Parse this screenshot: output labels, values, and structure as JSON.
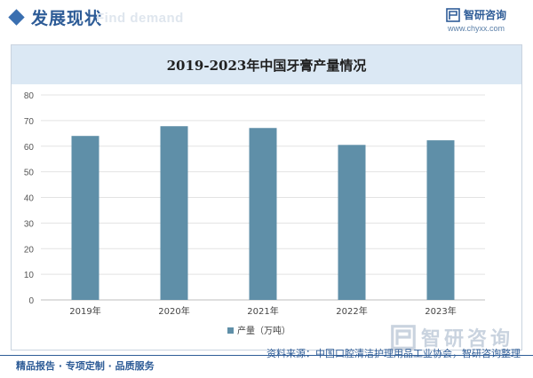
{
  "header": {
    "section_title": "发展现状",
    "watermark_en": "Find demand",
    "brand_name": "智研咨询",
    "brand_url": "www.chyxx.com",
    "colors": {
      "title": "#2e5c97",
      "accent": "#3a6fb0"
    }
  },
  "chart_data": {
    "type": "bar",
    "title": "2019-2023年中国牙膏产量情况",
    "categories": [
      "2019年",
      "2020年",
      "2021年",
      "2022年",
      "2023年"
    ],
    "series": [
      {
        "name": "产量（万吨）",
        "values": [
          64.0,
          67.8,
          67.1,
          60.5,
          62.3
        ],
        "color": "#5f8fa8"
      }
    ],
    "ylim": [
      0,
      80
    ],
    "yticks": [
      0,
      10,
      20,
      30,
      40,
      50,
      60,
      70,
      80
    ],
    "grid": true,
    "legend_position": "bottom"
  },
  "footer": {
    "left": "精品报告 · 专项定制 · 品质服务",
    "source": "资料来源：中国口腔清洁护理用品工业协会，智研咨询整理",
    "big_brand": "智研咨询"
  }
}
